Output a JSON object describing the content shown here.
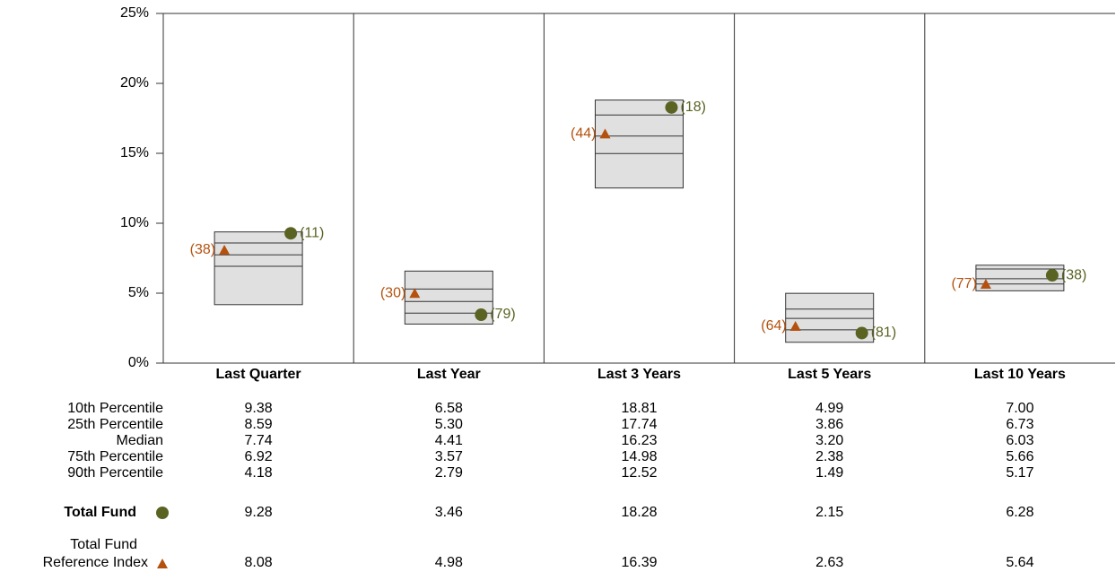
{
  "chart_data": {
    "type": "floating_box",
    "ylim": [
      0,
      25
    ],
    "yticks": [
      {
        "value": 0,
        "label": "0%"
      },
      {
        "value": 5,
        "label": "5%"
      },
      {
        "value": 10,
        "label": "10%"
      },
      {
        "value": 15,
        "label": "15%"
      },
      {
        "value": 20,
        "label": "20%"
      },
      {
        "value": 25,
        "label": "25%"
      }
    ],
    "categories": [
      "Last Quarter",
      "Last Year",
      "Last 3 Years",
      "Last 5 Years",
      "Last 10 Years"
    ],
    "box_color": "#e0e0e0",
    "percentiles": [
      {
        "name": "10th Percentile",
        "values": [
          9.38,
          6.58,
          18.81,
          4.99,
          7.0
        ],
        "value_labels": [
          "9.38",
          "6.58",
          "18.81",
          "4.99",
          "7.00"
        ]
      },
      {
        "name": "25th Percentile",
        "values": [
          8.59,
          5.3,
          17.74,
          3.86,
          6.73
        ],
        "value_labels": [
          "8.59",
          "5.30",
          "17.74",
          "3.86",
          "6.73"
        ]
      },
      {
        "name": "Median",
        "values": [
          7.74,
          4.41,
          16.23,
          3.2,
          6.03
        ],
        "value_labels": [
          "7.74",
          "4.41",
          "16.23",
          "3.20",
          "6.03"
        ]
      },
      {
        "name": "75th Percentile",
        "values": [
          6.92,
          3.57,
          14.98,
          2.38,
          5.66
        ],
        "value_labels": [
          "6.92",
          "3.57",
          "14.98",
          "2.38",
          "5.66"
        ]
      },
      {
        "name": "90th Percentile",
        "values": [
          4.18,
          2.79,
          12.52,
          1.49,
          5.17
        ],
        "value_labels": [
          "4.18",
          "2.79",
          "12.52",
          "1.49",
          "5.17"
        ]
      }
    ],
    "markers": [
      {
        "name_lines": [
          "Total Fund"
        ],
        "shape": "circle",
        "color": "#5b6322",
        "values": [
          9.28,
          3.46,
          18.28,
          2.15,
          6.28
        ],
        "value_labels": [
          "9.28",
          "3.46",
          "18.28",
          "2.15",
          "6.28"
        ],
        "ranks": [
          "(11)",
          "(79)",
          "(18)",
          "(81)",
          "(38)"
        ]
      },
      {
        "name_lines": [
          "Total Fund",
          "Reference Index"
        ],
        "shape": "triangle",
        "color": "#b5510f",
        "values": [
          8.08,
          4.98,
          16.39,
          2.63,
          5.64
        ],
        "value_labels": [
          "8.08",
          "4.98",
          "16.39",
          "2.63",
          "5.64"
        ],
        "ranks": [
          "(38)",
          "(30)",
          "(44)",
          "(64)",
          "(77)"
        ]
      }
    ]
  }
}
